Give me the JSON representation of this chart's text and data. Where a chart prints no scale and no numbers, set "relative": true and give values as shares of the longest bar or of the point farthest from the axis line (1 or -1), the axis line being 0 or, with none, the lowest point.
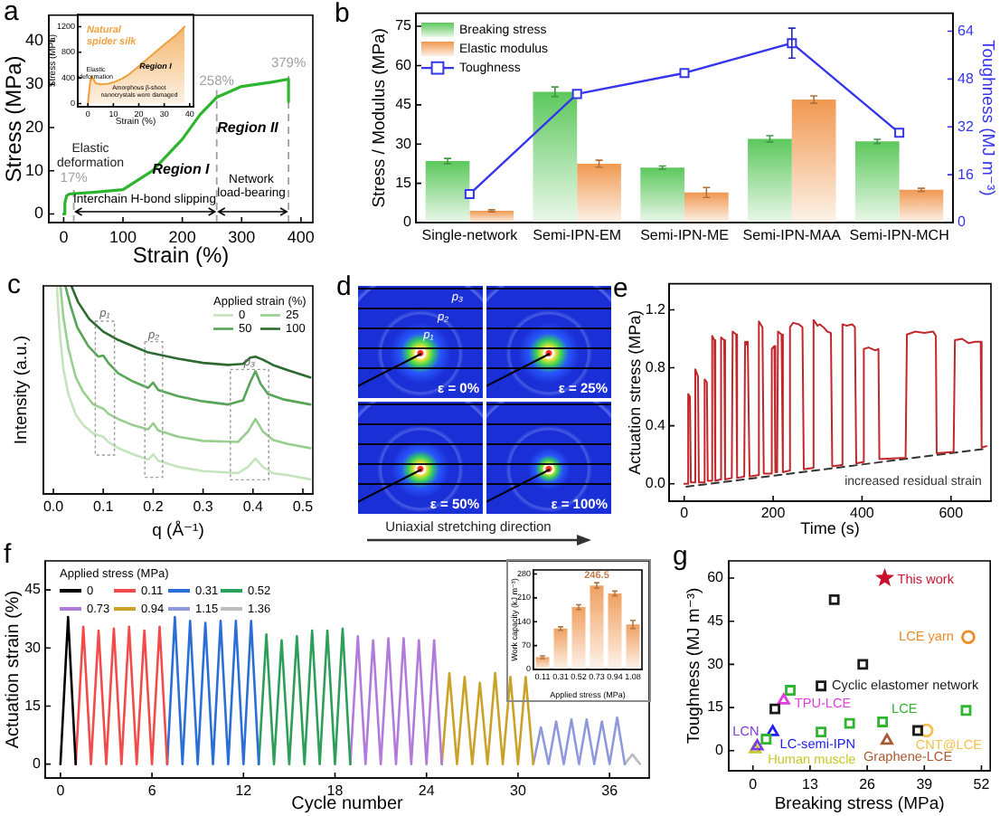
{
  "chart_data": [
    {
      "type": "line",
      "title": "a",
      "xlabel": "Strain (%)",
      "ylabel": "Stress (MPa)",
      "x": [
        0,
        2,
        5,
        10,
        17,
        50,
        100,
        150,
        200,
        230,
        258,
        300,
        350,
        379,
        379
      ],
      "values": [
        0,
        2.5,
        4.2,
        4.6,
        4.7,
        5,
        5.6,
        10,
        17.3,
        23,
        27,
        29.5,
        30.5,
        31.2,
        26
      ],
      "color": "#2db52d",
      "xlim": [
        -25,
        420
      ],
      "xticks": [
        0,
        100,
        200,
        300,
        400
      ],
      "ylim": [
        -2,
        46
      ],
      "yticks": [
        0,
        10,
        20,
        30,
        40
      ],
      "ref_lines": [
        {
          "axis": "x",
          "value": 17,
          "label": "17%"
        },
        {
          "axis": "x",
          "value": 258,
          "label": "258%"
        },
        {
          "axis": "x",
          "value": 379,
          "label": "379%"
        }
      ],
      "annotations": [
        "Elastic\ndeformation",
        "Region I",
        "Region II",
        "Interchain H-bond slipping",
        "Network\nload-bearing"
      ]
    },
    {
      "type": "area",
      "title": "Natural\nspider silk",
      "xlabel": "Strain (%)",
      "ylabel": "Stress (MPa)",
      "x": [
        0,
        0.5,
        1,
        1.5,
        2,
        3,
        5,
        8,
        10,
        13,
        16,
        20,
        25,
        30,
        35,
        38
      ],
      "values": [
        0,
        200,
        380,
        420,
        390,
        320,
        300,
        310,
        330,
        380,
        450,
        580,
        750,
        920,
        1080,
        1200
      ],
      "color": "#f0a040",
      "xlim": [
        -4,
        41.5
      ],
      "xticks": [
        0,
        10,
        20,
        30,
        40
      ],
      "ylim": [
        -50,
        1390
      ],
      "yticks": [
        0,
        400,
        800,
        1200
      ],
      "annotations": [
        "Elastic\ndeformation",
        "Region I",
        "Amorphous β-sheet\nnanocrystals were damaged"
      ]
    },
    {
      "type": "bar",
      "title": "b",
      "ylabel": "Stress / Modulus (MPa)",
      "y2label": "Toughness (MJ m⁻³)",
      "categories": [
        "Single-network",
        "Semi-IPN-EM",
        "Semi-IPN-ME",
        "Semi-IPN-MAA",
        "Semi-IPN-MCH"
      ],
      "series": [
        {
          "name": "Breaking stress",
          "color": "#5cc85c",
          "values": [
            23.5,
            50,
            21,
            32,
            31
          ],
          "errors": [
            1,
            1.8,
            0.6,
            1.2,
            0.8
          ]
        },
        {
          "name": "Elastic modulus",
          "color": "#f09850",
          "values": [
            4.5,
            22.5,
            11.5,
            47,
            12.5
          ],
          "errors": [
            0.4,
            1.3,
            1.9,
            1.4,
            0.6
          ]
        },
        {
          "name": "Toughness",
          "type": "line",
          "axis": "y2",
          "color": "#3535ee",
          "marker": "square",
          "values": [
            9.5,
            43,
            50,
            60,
            30
          ],
          "errors": [
            null,
            null,
            null,
            5,
            null
          ]
        }
      ],
      "ylim": [
        0,
        80
      ],
      "yticks": [
        0,
        15,
        30,
        45,
        60,
        75
      ],
      "y2lim": [
        0,
        70
      ],
      "y2ticks": [
        0,
        16,
        32,
        48,
        64
      ],
      "legend": "top left"
    },
    {
      "type": "line",
      "title": "c",
      "xlabel": "q (Å⁻¹)",
      "ylabel": "Intensity (a.u.)",
      "relative": true,
      "series": [
        {
          "name": "0",
          "color": "#c5e4bd",
          "x": [
            0.007,
            0.012,
            0.02,
            0.03,
            0.045,
            0.06,
            0.08,
            0.1,
            0.11,
            0.13,
            0.16,
            0.19,
            0.2,
            0.21,
            0.25,
            0.3,
            0.37,
            0.39,
            0.405,
            0.42,
            0.44,
            0.47,
            0.515
          ],
          "values": [
            1,
            0.8,
            0.6,
            0.48,
            0.38,
            0.33,
            0.29,
            0.275,
            0.25,
            0.22,
            0.19,
            0.165,
            0.19,
            0.16,
            0.13,
            0.11,
            0.1,
            0.13,
            0.17,
            0.13,
            0.1,
            0.09,
            0.07
          ]
        },
        {
          "name": "25",
          "color": "#98cf8f",
          "x": [
            0.014,
            0.02,
            0.03,
            0.045,
            0.06,
            0.08,
            0.1,
            0.11,
            0.13,
            0.16,
            0.19,
            0.2,
            0.21,
            0.25,
            0.3,
            0.37,
            0.39,
            0.405,
            0.42,
            0.44,
            0.47,
            0.515
          ],
          "values": [
            1,
            0.85,
            0.7,
            0.56,
            0.49,
            0.43,
            0.41,
            0.385,
            0.36,
            0.33,
            0.31,
            0.34,
            0.305,
            0.275,
            0.255,
            0.25,
            0.3,
            0.36,
            0.3,
            0.26,
            0.24,
            0.22
          ]
        },
        {
          "name": "50",
          "color": "#58a558",
          "x": [
            0.024,
            0.035,
            0.048,
            0.07,
            0.09,
            0.1,
            0.11,
            0.13,
            0.16,
            0.19,
            0.2,
            0.21,
            0.25,
            0.3,
            0.35,
            0.38,
            0.395,
            0.405,
            0.415,
            0.43,
            0.46,
            0.515
          ],
          "values": [
            1,
            0.9,
            0.8,
            0.71,
            0.66,
            0.665,
            0.63,
            0.58,
            0.54,
            0.51,
            0.535,
            0.5,
            0.47,
            0.445,
            0.43,
            0.45,
            0.54,
            0.59,
            0.53,
            0.48,
            0.455,
            0.43
          ]
        },
        {
          "name": "100",
          "color": "#2d6a30",
          "x": [
            0.036,
            0.05,
            0.072,
            0.1,
            0.13,
            0.16,
            0.19,
            0.22,
            0.25,
            0.3,
            0.35,
            0.38,
            0.395,
            0.405,
            0.42,
            0.44,
            0.47,
            0.515
          ],
          "values": [
            1,
            0.92,
            0.84,
            0.78,
            0.74,
            0.71,
            0.68,
            0.665,
            0.65,
            0.63,
            0.62,
            0.625,
            0.655,
            0.66,
            0.645,
            0.62,
            0.595,
            0.56
          ]
        }
      ],
      "xlim": [
        -0.02,
        0.52
      ],
      "xticks": [
        {
          "value": 0,
          "label": "0.0"
        },
        0.1,
        0.2,
        0.3,
        0.4,
        0.5
      ],
      "legend": "top right",
      "legend_title": "Applied strain (%)",
      "annotations": [
        "p₁",
        "p₂",
        "p₃"
      ]
    },
    {
      "type": "other",
      "title": "d",
      "annotations": [
        "p₃",
        "p₂",
        "p₁",
        "ε = 0%",
        "ε = 25%",
        "ε = 50%",
        "ε = 100%",
        "Uniaxial stretching direction"
      ]
    },
    {
      "type": "line",
      "title": "e",
      "xlabel": "Time (s)",
      "ylabel": "Actuation stress (MPa)",
      "series": [
        {
          "color": "#c0282c",
          "x": [
            0,
            7,
            9,
            13,
            15,
            23,
            25,
            31,
            33,
            44,
            46,
            51,
            53,
            61,
            63,
            68,
            70,
            81,
            83,
            90,
            92,
            107,
            109,
            117,
            119,
            135,
            137,
            140,
            143,
            147,
            166,
            168,
            172,
            176,
            179,
            195,
            197,
            203,
            205,
            209,
            211,
            219,
            222,
            236,
            238,
            245,
            258,
            266,
            269,
            289,
            291,
            300,
            305,
            313,
            322,
            330,
            333,
            354,
            356,
            366,
            378,
            384,
            387,
            402,
            404,
            415,
            430,
            437,
            439,
            498,
            501,
            520,
            540,
            560,
            566,
            568,
            606,
            609,
            625,
            640,
            655,
            667,
            669,
            680
          ],
          "values": [
            0,
            0,
            0.62,
            0.6,
            0.01,
            0.01,
            0.79,
            0.74,
            0.01,
            0.01,
            0.72,
            0.7,
            0.02,
            0.02,
            1.02,
            0.99,
            0.02,
            0.03,
            1.01,
            0.99,
            0.03,
            0.04,
            1.05,
            1.03,
            0.04,
            0.05,
            0.98,
            0.96,
            0.98,
            0.05,
            0.06,
            1.12,
            1.1,
            1.08,
            0.07,
            0.07,
            0.93,
            0.95,
            0.08,
            0.08,
            1.05,
            1.03,
            0.08,
            0.09,
            1.08,
            1.11,
            1.1,
            1.08,
            0.1,
            0.11,
            1.13,
            1.09,
            1.1,
            1.08,
            1.05,
            1.04,
            0.12,
            0.13,
            1.1,
            1.09,
            1.1,
            1.08,
            0.14,
            0.15,
            0.93,
            0.94,
            0.92,
            0.93,
            0.17,
            0.18,
            1.03,
            1.05,
            1.04,
            1.05,
            1.02,
            0.21,
            0.22,
            0.99,
            1,
            0.97,
            0.98,
            0.98,
            0.25,
            0.26
          ]
        },
        {
          "type": "line",
          "color": "#333333",
          "line_style": "dashed",
          "x": [
            5,
            675
          ],
          "values": [
            -0.02,
            0.24
          ]
        }
      ],
      "xlim": [
        -34,
        690
      ],
      "xticks": [
        0,
        200,
        400,
        600
      ],
      "ylim": [
        -0.12,
        1.38
      ],
      "yticks": [
        {
          "value": 0,
          "label": "0.0"
        },
        0.4,
        0.8,
        1.2
      ],
      "annotations": [
        "increased residual strain"
      ]
    },
    {
      "type": "line",
      "title": "f",
      "xlabel": "Cycle number",
      "ylabel": "Actuation strain (%)",
      "legend": "top left",
      "legend_title": "Applied stress (MPa)",
      "series": [
        {
          "name": "0",
          "color": "#000000",
          "x": [
            0,
            0.5,
            1
          ],
          "values": [
            0,
            38,
            0
          ]
        },
        {
          "name": "0.11",
          "color": "#f24b4b",
          "x": [
            1,
            1.5,
            2,
            2.5,
            3,
            3.5,
            4,
            4.5,
            5,
            5.5,
            6,
            6.5,
            7
          ],
          "values": [
            0,
            35.5,
            0,
            34.5,
            0,
            35,
            0,
            35.5,
            0,
            34.5,
            0,
            35.5,
            0
          ]
        },
        {
          "name": "0.31",
          "color": "#2b6fd6",
          "x": [
            7,
            7.5,
            8,
            8.5,
            9,
            9.5,
            10,
            10.5,
            11,
            11.5,
            12,
            12.5,
            13
          ],
          "values": [
            0,
            38,
            0,
            37,
            0,
            36.5,
            0,
            37,
            0,
            37,
            0,
            37,
            0
          ]
        },
        {
          "name": "0.52",
          "color": "#2e9e5b",
          "x": [
            13,
            13.5,
            14,
            14.5,
            15,
            15.5,
            16,
            16.5,
            17,
            17.5,
            18,
            18.5,
            19
          ],
          "values": [
            0,
            33.5,
            0,
            32,
            0,
            33,
            0,
            34.5,
            0,
            34.5,
            0,
            35,
            0
          ]
        },
        {
          "name": "0.73",
          "color": "#b27bdb",
          "x": [
            19,
            19.5,
            20,
            20.5,
            21,
            21.5,
            22,
            22.5,
            23,
            23.5,
            24,
            24.5,
            25
          ],
          "values": [
            0,
            33,
            0,
            32,
            0,
            32.5,
            0,
            32.5,
            0,
            32,
            0,
            32,
            0
          ]
        },
        {
          "name": "0.94",
          "color": "#c9a227",
          "x": [
            25,
            25.5,
            26,
            26.5,
            27,
            27.5,
            28,
            28.5,
            29,
            29.5,
            30,
            30.5,
            31
          ],
          "values": [
            0,
            23.5,
            0,
            22.5,
            0,
            21,
            0,
            23.5,
            0,
            22.5,
            0,
            22.5,
            0
          ]
        },
        {
          "name": "1.15",
          "color": "#8f98dc",
          "x": [
            31,
            31.5,
            32,
            32.5,
            33,
            33.5,
            34,
            34.5,
            35,
            35.5,
            36,
            36.5,
            37
          ],
          "values": [
            0,
            9.5,
            0,
            11,
            0,
            11.5,
            0,
            11.5,
            0,
            11,
            0,
            12,
            0
          ]
        },
        {
          "name": "1.36",
          "color": "#bdbdbd",
          "x": [
            37,
            37.5,
            38
          ],
          "values": [
            0,
            2.5,
            0
          ]
        }
      ],
      "xlim": [
        -1,
        38.6
      ],
      "xticks": [
        0,
        6,
        12,
        18,
        24,
        30,
        36
      ],
      "ylim": [
        -3.6,
        52.5
      ],
      "yticks": [
        0,
        15,
        30,
        45
      ]
    },
    {
      "type": "bar",
      "xlabel": "Applied stress (MPa)",
      "ylabel": "Work capacity (kJ m⁻³)",
      "categories": [
        "0.11",
        "0.31",
        "0.52",
        "0.73",
        "0.94",
        "1.08"
      ],
      "values": [
        36,
        120,
        183,
        246.5,
        223,
        132
      ],
      "errors": [
        4,
        5,
        7,
        8,
        7,
        12
      ],
      "color": "#f0a060",
      "value_labels": [
        null,
        null,
        null,
        "246.5",
        null,
        null
      ],
      "ylim": [
        0,
        292
      ],
      "yticks": [
        0,
        70,
        140,
        210,
        280
      ]
    },
    {
      "type": "scatter",
      "title": "g",
      "xlabel": "Breaking stress (MPa)",
      "ylabel": "Toughness (MJ m⁻³)",
      "xlim": [
        -5.5,
        54
      ],
      "xticks": [
        0,
        13,
        26,
        39,
        52
      ],
      "ylim": [
        -7,
        66
      ],
      "yticks": [
        0,
        15,
        30,
        45,
        60
      ],
      "series": [
        {
          "name": "This work",
          "color": "#c8102e",
          "marker": "star",
          "x": [
            30
          ],
          "values": [
            60
          ]
        },
        {
          "name": "LCE yarn",
          "color": "#f08a24",
          "marker": "circle",
          "x": [
            49
          ],
          "values": [
            39.5
          ]
        },
        {
          "name": "Cyclic elastomer network",
          "color": "#1a1a1a",
          "marker": "square",
          "x": [
            15.5,
            18.5,
            25,
            5,
            37.5
          ],
          "values": [
            22.5,
            52.5,
            30,
            14.5,
            7
          ]
        },
        {
          "name": "TPU-LCE",
          "color": "#e03ce0",
          "marker": "triangle",
          "x": [
            7
          ],
          "values": [
            17.5
          ]
        },
        {
          "name": "LCE",
          "color": "#2fb52f",
          "marker": "square",
          "x": [
            29.5,
            8.5,
            3,
            15.5,
            22,
            48.5
          ],
          "values": [
            10,
            21,
            4,
            6.5,
            9.5,
            14
          ]
        },
        {
          "name": "LCN",
          "color": "#7a3cdc",
          "marker": "triangle",
          "x": [
            1
          ],
          "values": [
            1.5
          ]
        },
        {
          "name": "LC-semi-IPN",
          "color": "#2020f0",
          "marker": "triangle",
          "x": [
            4.5
          ],
          "values": [
            6.5
          ]
        },
        {
          "name": "Human muscle",
          "color": "#c9c92a",
          "marker": "triangle",
          "x": [
            0.5
          ],
          "values": [
            0.5
          ]
        },
        {
          "name": "Graphene-LCE",
          "color": "#a85a32",
          "marker": "triangle",
          "x": [
            30.5
          ],
          "values": [
            3.5
          ]
        },
        {
          "name": "CNT@LCE",
          "color": "#f2c14e",
          "marker": "circle",
          "x": [
            39.5
          ],
          "values": [
            7
          ]
        }
      ]
    }
  ]
}
